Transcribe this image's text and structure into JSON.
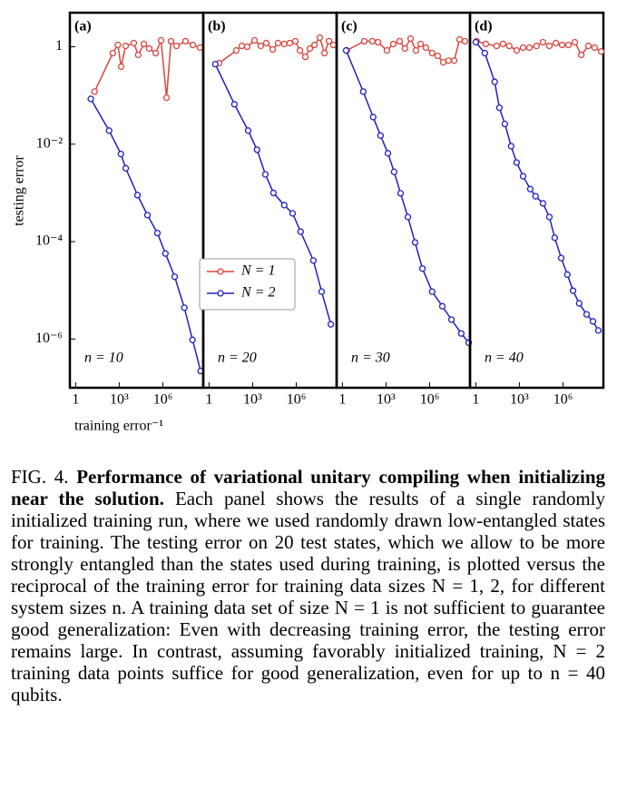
{
  "chart_data": [
    {
      "type": "line",
      "title": "(a)",
      "annotation": "n = 10",
      "ylabel": "testing error",
      "xlabel": "training error⁻¹",
      "xscale": "log",
      "yscale": "log",
      "xlim": [
        0.4,
        600000000.0
      ],
      "ylim": [
        1e-07,
        5
      ],
      "xticks": [
        1,
        {
          "value": 1000,
          "label": "10³"
        },
        {
          "value": 1000000,
          "label": "10⁶"
        }
      ],
      "yticks": [
        {
          "value": 1e-06,
          "label": "10⁻⁶"
        },
        {
          "value": 0.0001,
          "label": "10⁻⁴"
        },
        {
          "value": 0.01,
          "label": "10⁻²"
        },
        1
      ],
      "series": [
        {
          "name": "N = 1",
          "color": "#d9463e",
          "x": [
            20,
            360,
            800,
            1350,
            2750,
            10000,
            20000,
            49000,
            115000,
            320000,
            750000,
            1800000,
            3600000,
            8700000,
            36000000,
            115000000,
            360000000
          ],
          "values": [
            0.12,
            0.74,
            1.09,
            0.39,
            1.04,
            1.19,
            0.68,
            1.14,
            0.92,
            0.74,
            1.35,
            0.09,
            1.3,
            1.04,
            1.3,
            1.09,
            0.96
          ]
        },
        {
          "name": "N = 2",
          "color": "#2020c0",
          "x": [
            11,
            200,
            1300,
            2800,
            18000,
            87000,
            420000,
            1500000,
            6500000,
            30000000,
            110000000,
            400000000
          ],
          "values": [
            0.085,
            0.019,
            0.0063,
            0.0032,
            0.0009,
            0.00035,
            0.00015,
            5.7e-05,
            1.9e-05,
            4.4e-06,
            9.6e-07,
            2.2e-07
          ]
        }
      ]
    },
    {
      "type": "line",
      "title": "(b)",
      "annotation": "n = 20",
      "xscale": "log",
      "yscale": "log",
      "xlim": [
        0.4,
        600000000.0
      ],
      "ylim": [
        1e-07,
        5
      ],
      "xticks": [
        1,
        {
          "value": 1000,
          "label": "10³"
        },
        {
          "value": 1000000,
          "label": "10⁶"
        }
      ],
      "series": [
        {
          "color": "#d9463e",
          "x": [
            4.9,
            75,
            180,
            420,
            1350,
            3600,
            8700,
            24000,
            56000,
            150000,
            360000,
            870000,
            1800000,
            4200000,
            8700000,
            18000000,
            42000000,
            87000000,
            180000000,
            360000000
          ],
          "values": [
            0.46,
            0.84,
            1.04,
            1,
            1.35,
            1.04,
            1.19,
            0.88,
            1.19,
            1.14,
            1.19,
            1.3,
            0.84,
            0.62,
            0.92,
            1.09,
            1.54,
            0.74,
            1.3,
            1.09
          ]
        },
        {
          "color": "#2020c0",
          "x": [
            2.7,
            56,
            490,
            2000,
            7500,
            27000,
            150000,
            560000,
            2000000,
            15000000,
            56000000,
            240000000
          ],
          "values": [
            0.44,
            0.066,
            0.019,
            0.0077,
            0.0024,
            0.001,
            0.00056,
            0.00038,
            0.00016,
            4.1e-05,
            9.4e-06,
            2e-06
          ]
        }
      ]
    },
    {
      "type": "line",
      "title": "(c)",
      "annotation": "n = 30",
      "xscale": "log",
      "yscale": "log",
      "xlim": [
        0.4,
        600000000.0
      ],
      "ylim": [
        1e-07,
        5
      ],
      "xticks": [
        1,
        {
          "value": 1000,
          "label": "10³"
        },
        {
          "value": 1000000,
          "label": "10⁶"
        }
      ],
      "series": [
        {
          "color": "#d9463e",
          "x": [
            2,
            32,
            115,
            280,
            1150,
            3200,
            8700,
            20000,
            49000,
            115000,
            240000,
            560000,
            1500000,
            3600000,
            8700000,
            20000000,
            49000000,
            115000000,
            270000000
          ],
          "values": [
            0.84,
            1.3,
            1.3,
            1.24,
            0.84,
            1.14,
            1.3,
            0.92,
            1.47,
            0.84,
            1.14,
            0.96,
            0.74,
            0.65,
            0.48,
            0.52,
            0.52,
            1.41,
            1.3
          ]
        },
        {
          "color": "#2020c0",
          "x": [
            1.8,
            27,
            130,
            420,
            1350,
            3600,
            10000,
            32000,
            100000,
            320000,
            1500000,
            7500000,
            32000000,
            150000000,
            490000000
          ],
          "values": [
            0.84,
            0.12,
            0.036,
            0.015,
            0.0065,
            0.0027,
            0.00098,
            0.00032,
            9.6e-05,
            2.8e-05,
            9.4e-06,
            4.7e-06,
            2.5e-06,
            1.3e-06,
            8.4e-07
          ]
        }
      ]
    },
    {
      "type": "line",
      "title": "(d)",
      "annotation": "n = 40",
      "xscale": "log",
      "yscale": "log",
      "xlim": [
        0.4,
        600000000.0
      ],
      "ylim": [
        1e-07,
        5
      ],
      "xticks": [
        1,
        {
          "value": 1000,
          "label": "10³"
        },
        {
          "value": 1000000,
          "label": "10⁶"
        }
      ],
      "series": [
        {
          "color": "#d9463e",
          "x": [
            1.15,
            4.9,
            27,
            75,
            200,
            650,
            1800,
            4900,
            15000,
            42000,
            115000,
            320000,
            870000,
            2400000,
            6500000,
            18000000,
            56000000,
            150000000,
            420000000
          ],
          "values": [
            1.3,
            1.14,
            1.04,
            1.14,
            1.04,
            0.84,
            0.96,
            0.96,
            1.04,
            1.24,
            1.04,
            1.19,
            1.09,
            1.09,
            1.24,
            0.68,
            1.04,
            0.96,
            0.8
          ]
        },
        {
          "color": "#2020c0",
          "x": [
            1,
            4.2,
            20,
            42,
            100,
            270,
            650,
            1800,
            5600,
            13000,
            42000,
            115000,
            270000,
            750000,
            2000000,
            4900000,
            13000000,
            42000000,
            115000000,
            270000000
          ],
          "values": [
            1.24,
            0.74,
            0.19,
            0.056,
            0.026,
            0.0091,
            0.0042,
            0.0022,
            0.0012,
            0.00085,
            0.00061,
            0.00032,
            0.00012,
            4.6e-05,
            2.1e-05,
            9.8e-06,
            5.4e-06,
            3.2e-06,
            2.3e-06,
            1.5e-06
          ]
        }
      ]
    }
  ],
  "caption": {
    "label": "FIG. 4.",
    "title": "Performance of variational unitary compiling when initializing near the solution.",
    "text": "Each panel shows the results of a single randomly initialized training run, where we used randomly drawn low-entangled states for training. The testing error on 20 test states, which we allow to be more strongly entangled than the states used during training, is plotted versus the reciprocal of the training error for training data sizes N = 1, 2, for different system sizes n. A training data set of size N = 1 is not sufficient to guarantee good generalization: Even with decreasing training error, the testing error remains large. In contrast, assuming favorably initialized training, N = 2 training data points suffice for good generalization, even for up to n = 40 qubits."
  }
}
